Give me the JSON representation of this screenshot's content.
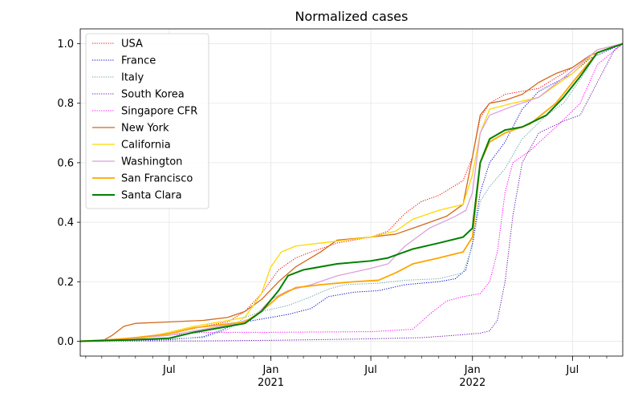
{
  "chart_data": {
    "type": "line",
    "title": "Normalized cases",
    "xlabel": "",
    "ylabel": "",
    "xlim": [
      "2020-01-22",
      "2022-09-30"
    ],
    "ylim": [
      -0.05,
      1.05
    ],
    "x_ticks": [
      {
        "date": "2020-07-01",
        "label": "Jul",
        "sub": ""
      },
      {
        "date": "2021-01-01",
        "label": "Jan",
        "sub": "2021"
      },
      {
        "date": "2021-07-01",
        "label": "Jul",
        "sub": ""
      },
      {
        "date": "2022-01-01",
        "label": "Jan",
        "sub": "2022"
      },
      {
        "date": "2022-07-01",
        "label": "Jul",
        "sub": ""
      }
    ],
    "y_ticks": [
      0.0,
      0.2,
      0.4,
      0.6,
      0.8,
      1.0
    ],
    "y_tick_labels": [
      "0.0",
      "0.2",
      "0.4",
      "0.6",
      "0.8",
      "1.0"
    ],
    "grid": true,
    "legend_position": "top-left",
    "series": [
      {
        "name": "USA",
        "color": "#ff0000",
        "style": "dotted",
        "width": 1,
        "points": [
          [
            "2020-01-22",
            0
          ],
          [
            "2020-03-15",
            0.001
          ],
          [
            "2020-04-15",
            0.005
          ],
          [
            "2020-06-01",
            0.015
          ],
          [
            "2020-07-15",
            0.03
          ],
          [
            "2020-09-01",
            0.05
          ],
          [
            "2020-10-15",
            0.065
          ],
          [
            "2020-11-15",
            0.1
          ],
          [
            "2020-12-15",
            0.16
          ],
          [
            "2021-01-15",
            0.24
          ],
          [
            "2021-02-15",
            0.28
          ],
          [
            "2021-03-15",
            0.3
          ],
          [
            "2021-05-01",
            0.33
          ],
          [
            "2021-07-01",
            0.35
          ],
          [
            "2021-08-01",
            0.37
          ],
          [
            "2021-09-01",
            0.43
          ],
          [
            "2021-10-01",
            0.47
          ],
          [
            "2021-11-01",
            0.49
          ],
          [
            "2021-12-15",
            0.54
          ],
          [
            "2022-01-01",
            0.62
          ],
          [
            "2022-01-15",
            0.75
          ],
          [
            "2022-02-01",
            0.8
          ],
          [
            "2022-03-01",
            0.83
          ],
          [
            "2022-05-01",
            0.85
          ],
          [
            "2022-07-01",
            0.92
          ],
          [
            "2022-08-01",
            0.96
          ],
          [
            "2022-09-30",
            1.0
          ]
        ]
      },
      {
        "name": "France",
        "color": "#0000cc",
        "style": "dotted",
        "width": 1,
        "points": [
          [
            "2020-01-22",
            0
          ],
          [
            "2020-03-15",
            0.0005
          ],
          [
            "2020-05-01",
            0.003
          ],
          [
            "2020-07-01",
            0.005
          ],
          [
            "2020-09-01",
            0.015
          ],
          [
            "2020-10-01",
            0.035
          ],
          [
            "2020-11-01",
            0.06
          ],
          [
            "2020-12-01",
            0.07
          ],
          [
            "2021-01-01",
            0.08
          ],
          [
            "2021-02-01",
            0.09
          ],
          [
            "2021-03-15",
            0.11
          ],
          [
            "2021-04-15",
            0.15
          ],
          [
            "2021-06-01",
            0.165
          ],
          [
            "2021-07-15",
            0.17
          ],
          [
            "2021-09-01",
            0.19
          ],
          [
            "2021-11-01",
            0.2
          ],
          [
            "2021-12-01",
            0.21
          ],
          [
            "2021-12-20",
            0.24
          ],
          [
            "2022-01-01",
            0.33
          ],
          [
            "2022-01-15",
            0.5
          ],
          [
            "2022-02-01",
            0.6
          ],
          [
            "2022-03-01",
            0.67
          ],
          [
            "2022-04-01",
            0.78
          ],
          [
            "2022-05-01",
            0.84
          ],
          [
            "2022-07-01",
            0.9
          ],
          [
            "2022-08-01",
            0.95
          ],
          [
            "2022-09-30",
            1.0
          ]
        ]
      },
      {
        "name": "Italy",
        "color": "#5f9ea0",
        "style": "dotted",
        "width": 1,
        "points": [
          [
            "2020-01-22",
            0
          ],
          [
            "2020-03-01",
            0.001
          ],
          [
            "2020-04-15",
            0.005
          ],
          [
            "2020-06-01",
            0.007
          ],
          [
            "2020-09-01",
            0.012
          ],
          [
            "2020-10-15",
            0.04
          ],
          [
            "2020-11-15",
            0.08
          ],
          [
            "2020-12-15",
            0.1
          ],
          [
            "2021-02-01",
            0.12
          ],
          [
            "2021-03-15",
            0.15
          ],
          [
            "2021-04-15",
            0.175
          ],
          [
            "2021-05-15",
            0.19
          ],
          [
            "2021-07-15",
            0.195
          ],
          [
            "2021-09-01",
            0.205
          ],
          [
            "2021-11-01",
            0.21
          ],
          [
            "2021-12-15",
            0.23
          ],
          [
            "2022-01-01",
            0.32
          ],
          [
            "2022-01-15",
            0.47
          ],
          [
            "2022-02-01",
            0.52
          ],
          [
            "2022-03-01",
            0.58
          ],
          [
            "2022-04-01",
            0.68
          ],
          [
            "2022-05-15",
            0.76
          ],
          [
            "2022-06-15",
            0.8
          ],
          [
            "2022-07-15",
            0.88
          ],
          [
            "2022-08-15",
            0.97
          ],
          [
            "2022-09-30",
            1.0
          ]
        ]
      },
      {
        "name": "South Korea",
        "color": "#6a0dad",
        "style": "dotted",
        "width": 1,
        "points": [
          [
            "2020-01-22",
            0
          ],
          [
            "2020-03-01",
            0.0005
          ],
          [
            "2020-06-01",
            0.0008
          ],
          [
            "2020-09-01",
            0.001
          ],
          [
            "2021-01-01",
            0.003
          ],
          [
            "2021-07-01",
            0.008
          ],
          [
            "2021-10-01",
            0.012
          ],
          [
            "2021-12-01",
            0.02
          ],
          [
            "2022-01-15",
            0.027
          ],
          [
            "2022-02-01",
            0.035
          ],
          [
            "2022-02-15",
            0.07
          ],
          [
            "2022-03-01",
            0.2
          ],
          [
            "2022-03-15",
            0.42
          ],
          [
            "2022-04-01",
            0.6
          ],
          [
            "2022-05-01",
            0.7
          ],
          [
            "2022-06-15",
            0.74
          ],
          [
            "2022-07-15",
            0.76
          ],
          [
            "2022-08-15",
            0.87
          ],
          [
            "2022-09-15",
            0.98
          ],
          [
            "2022-09-30",
            1.0
          ]
        ]
      },
      {
        "name": "Singapore CFR",
        "color": "#ff00ff",
        "style": "dotted",
        "width": 1,
        "points": [
          [
            "2020-01-22",
            0
          ],
          [
            "2020-03-01",
            0.001
          ],
          [
            "2020-04-15",
            0.005
          ],
          [
            "2020-05-15",
            0.012
          ],
          [
            "2020-07-01",
            0.02
          ],
          [
            "2020-09-01",
            0.03
          ],
          [
            "2021-01-01",
            0.03
          ],
          [
            "2021-07-01",
            0.032
          ],
          [
            "2021-09-15",
            0.04
          ],
          [
            "2021-10-15",
            0.09
          ],
          [
            "2021-11-15",
            0.135
          ],
          [
            "2021-12-15",
            0.15
          ],
          [
            "2022-01-15",
            0.16
          ],
          [
            "2022-02-01",
            0.2
          ],
          [
            "2022-02-15",
            0.3
          ],
          [
            "2022-03-01",
            0.5
          ],
          [
            "2022-03-15",
            0.6
          ],
          [
            "2022-04-15",
            0.64
          ],
          [
            "2022-06-01",
            0.72
          ],
          [
            "2022-07-15",
            0.8
          ],
          [
            "2022-08-15",
            0.93
          ],
          [
            "2022-09-30",
            1.0
          ]
        ]
      },
      {
        "name": "New York",
        "color": "#d2691e",
        "style": "solid",
        "width": 1.3,
        "points": [
          [
            "2020-01-22",
            0
          ],
          [
            "2020-03-01",
            0
          ],
          [
            "2020-03-20",
            0.02
          ],
          [
            "2020-04-10",
            0.05
          ],
          [
            "2020-05-01",
            0.06
          ],
          [
            "2020-07-01",
            0.065
          ],
          [
            "2020-09-01",
            0.07
          ],
          [
            "2020-10-15",
            0.08
          ],
          [
            "2020-11-15",
            0.1
          ],
          [
            "2020-12-15",
            0.14
          ],
          [
            "2021-01-15",
            0.2
          ],
          [
            "2021-02-15",
            0.25
          ],
          [
            "2021-04-01",
            0.3
          ],
          [
            "2021-05-01",
            0.34
          ],
          [
            "2021-07-01",
            0.35
          ],
          [
            "2021-08-15",
            0.36
          ],
          [
            "2021-10-01",
            0.39
          ],
          [
            "2021-11-15",
            0.42
          ],
          [
            "2021-12-15",
            0.46
          ],
          [
            "2022-01-01",
            0.62
          ],
          [
            "2022-01-15",
            0.76
          ],
          [
            "2022-02-01",
            0.8
          ],
          [
            "2022-03-01",
            0.81
          ],
          [
            "2022-04-01",
            0.83
          ],
          [
            "2022-05-01",
            0.87
          ],
          [
            "2022-06-01",
            0.9
          ],
          [
            "2022-07-01",
            0.92
          ],
          [
            "2022-08-01",
            0.96
          ],
          [
            "2022-09-30",
            1.0
          ]
        ]
      },
      {
        "name": "California",
        "color": "#ffd700",
        "style": "solid",
        "width": 1.3,
        "points": [
          [
            "2020-01-22",
            0
          ],
          [
            "2020-04-01",
            0.003
          ],
          [
            "2020-05-15",
            0.01
          ],
          [
            "2020-07-01",
            0.03
          ],
          [
            "2020-08-15",
            0.05
          ],
          [
            "2020-10-01",
            0.065
          ],
          [
            "2020-11-15",
            0.08
          ],
          [
            "2020-12-15",
            0.16
          ],
          [
            "2021-01-01",
            0.25
          ],
          [
            "2021-01-20",
            0.3
          ],
          [
            "2021-02-15",
            0.32
          ],
          [
            "2021-04-01",
            0.33
          ],
          [
            "2021-07-01",
            0.35
          ],
          [
            "2021-08-15",
            0.37
          ],
          [
            "2021-09-15",
            0.41
          ],
          [
            "2021-11-01",
            0.44
          ],
          [
            "2021-12-15",
            0.46
          ],
          [
            "2022-01-01",
            0.56
          ],
          [
            "2022-01-15",
            0.7
          ],
          [
            "2022-02-01",
            0.78
          ],
          [
            "2022-03-15",
            0.8
          ],
          [
            "2022-05-01",
            0.82
          ],
          [
            "2022-07-01",
            0.9
          ],
          [
            "2022-08-15",
            0.98
          ],
          [
            "2022-09-30",
            1.0
          ]
        ]
      },
      {
        "name": "Washington",
        "color": "#dda0dd",
        "style": "solid",
        "width": 1.3,
        "points": [
          [
            "2020-01-22",
            0
          ],
          [
            "2020-03-15",
            0.005
          ],
          [
            "2020-05-01",
            0.01
          ],
          [
            "2020-07-01",
            0.02
          ],
          [
            "2020-09-01",
            0.04
          ],
          [
            "2020-11-01",
            0.06
          ],
          [
            "2020-12-01",
            0.08
          ],
          [
            "2021-01-01",
            0.14
          ],
          [
            "2021-02-01",
            0.17
          ],
          [
            "2021-03-15",
            0.19
          ],
          [
            "2021-05-01",
            0.22
          ],
          [
            "2021-07-01",
            0.245
          ],
          [
            "2021-08-01",
            0.26
          ],
          [
            "2021-09-01",
            0.32
          ],
          [
            "2021-10-15",
            0.38
          ],
          [
            "2021-12-01",
            0.42
          ],
          [
            "2021-12-20",
            0.44
          ],
          [
            "2022-01-01",
            0.5
          ],
          [
            "2022-01-15",
            0.7
          ],
          [
            "2022-02-01",
            0.76
          ],
          [
            "2022-03-15",
            0.79
          ],
          [
            "2022-05-01",
            0.82
          ],
          [
            "2022-07-01",
            0.91
          ],
          [
            "2022-08-15",
            0.98
          ],
          [
            "2022-09-30",
            1.0
          ]
        ]
      },
      {
        "name": "San Francisco",
        "color": "#ffa500",
        "style": "solid",
        "width": 1.8,
        "points": [
          [
            "2020-01-22",
            0
          ],
          [
            "2020-03-15",
            0.005
          ],
          [
            "2020-05-01",
            0.012
          ],
          [
            "2020-07-01",
            0.025
          ],
          [
            "2020-08-15",
            0.045
          ],
          [
            "2020-10-01",
            0.055
          ],
          [
            "2020-11-15",
            0.065
          ],
          [
            "2020-12-15",
            0.1
          ],
          [
            "2021-01-15",
            0.15
          ],
          [
            "2021-02-15",
            0.18
          ],
          [
            "2021-04-01",
            0.19
          ],
          [
            "2021-06-01",
            0.2
          ],
          [
            "2021-07-15",
            0.205
          ],
          [
            "2021-08-15",
            0.23
          ],
          [
            "2021-09-15",
            0.26
          ],
          [
            "2021-11-01",
            0.28
          ],
          [
            "2021-12-15",
            0.3
          ],
          [
            "2022-01-01",
            0.35
          ],
          [
            "2022-01-15",
            0.6
          ],
          [
            "2022-02-01",
            0.67
          ],
          [
            "2022-03-01",
            0.7
          ],
          [
            "2022-04-15",
            0.73
          ],
          [
            "2022-06-01",
            0.8
          ],
          [
            "2022-07-01",
            0.87
          ],
          [
            "2022-08-15",
            0.97
          ],
          [
            "2022-09-30",
            1.0
          ]
        ]
      },
      {
        "name": "Santa Clara",
        "color": "#008000",
        "style": "solid",
        "width": 2,
        "points": [
          [
            "2020-01-22",
            0
          ],
          [
            "2020-03-15",
            0.003
          ],
          [
            "2020-05-01",
            0.005
          ],
          [
            "2020-07-01",
            0.01
          ],
          [
            "2020-08-15",
            0.03
          ],
          [
            "2020-10-01",
            0.045
          ],
          [
            "2020-11-15",
            0.06
          ],
          [
            "2020-12-15",
            0.1
          ],
          [
            "2021-01-15",
            0.17
          ],
          [
            "2021-02-01",
            0.22
          ],
          [
            "2021-03-01",
            0.24
          ],
          [
            "2021-05-01",
            0.26
          ],
          [
            "2021-07-01",
            0.27
          ],
          [
            "2021-08-01",
            0.28
          ],
          [
            "2021-09-15",
            0.31
          ],
          [
            "2021-11-01",
            0.33
          ],
          [
            "2021-12-15",
            0.35
          ],
          [
            "2022-01-01",
            0.38
          ],
          [
            "2022-01-15",
            0.6
          ],
          [
            "2022-02-01",
            0.68
          ],
          [
            "2022-03-01",
            0.71
          ],
          [
            "2022-04-01",
            0.72
          ],
          [
            "2022-05-15",
            0.76
          ],
          [
            "2022-06-15",
            0.82
          ],
          [
            "2022-07-15",
            0.89
          ],
          [
            "2022-08-15",
            0.97
          ],
          [
            "2022-09-30",
            1.0
          ]
        ]
      }
    ]
  }
}
